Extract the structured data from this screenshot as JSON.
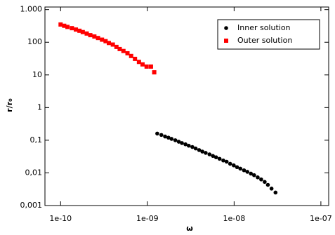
{
  "chart_data": {
    "type": "scatter",
    "log_x": true,
    "log_y": true,
    "xlabel": "ω",
    "ylabel": "r/r₀",
    "xlim": [
      6.6e-11,
      1.23e-07
    ],
    "ylim": [
      0.001,
      1200
    ],
    "xticks": [
      {
        "value": 1e-10,
        "label": "1e-10"
      },
      {
        "value": 1e-09,
        "label": "1e-09"
      },
      {
        "value": 1e-08,
        "label": "1e-08"
      },
      {
        "value": 1e-07,
        "label": "1e-07"
      }
    ],
    "yticks": [
      {
        "value": 0.001,
        "label": "0,001"
      },
      {
        "value": 0.01,
        "label": "0,01"
      },
      {
        "value": 0.1,
        "label": "0,1"
      },
      1,
      10,
      100,
      {
        "value": 1000,
        "label": "1.000"
      }
    ],
    "legend_position": "upper right",
    "series": [
      {
        "name": "Inner solution",
        "color": "#000000",
        "marker": "circle",
        "x": [
          1.3e-09,
          1.45e-09,
          1.6e-09,
          1.75e-09,
          1.9e-09,
          2.1e-09,
          2.3e-09,
          2.5e-09,
          2.75e-09,
          3e-09,
          3.3e-09,
          3.6e-09,
          3.95e-09,
          4.3e-09,
          4.7e-09,
          5.2e-09,
          5.7e-09,
          6.2e-09,
          6.8e-09,
          7.5e-09,
          8.2e-09,
          9e-09,
          9.9e-09,
          1.08e-08,
          1.18e-08,
          1.3e-08,
          1.42e-08,
          1.56e-08,
          1.7e-08,
          1.87e-08,
          2.05e-08,
          2.25e-08,
          2.45e-08,
          2.7e-08,
          3e-08
        ],
        "values": [
          0.16,
          0.145,
          0.13,
          0.12,
          0.11,
          0.1,
          0.09,
          0.082,
          0.075,
          0.068,
          0.062,
          0.056,
          0.05,
          0.045,
          0.041,
          0.037,
          0.033,
          0.03,
          0.027,
          0.024,
          0.022,
          0.019,
          0.017,
          0.015,
          0.0135,
          0.012,
          0.0108,
          0.0095,
          0.0085,
          0.0073,
          0.0063,
          0.0053,
          0.0043,
          0.0033,
          0.0025
        ]
      },
      {
        "name": "Outer solution",
        "color": "#ff0000",
        "marker": "square",
        "x": [
          1e-10,
          1.1e-10,
          1.2e-10,
          1.35e-10,
          1.5e-10,
          1.65e-10,
          1.8e-10,
          2e-10,
          2.2e-10,
          2.45e-10,
          2.7e-10,
          3e-10,
          3.3e-10,
          3.6e-10,
          4e-10,
          4.4e-10,
          4.8e-10,
          5.3e-10,
          5.9e-10,
          6.5e-10,
          7.2e-10,
          8e-10,
          8.8e-10,
          9.8e-10,
          1.1e-09,
          1.2e-09
        ],
        "values": [
          350,
          320,
          295,
          270,
          245,
          225,
          205,
          185,
          165,
          150,
          135,
          120,
          108,
          95,
          85,
          72,
          62,
          54,
          46,
          38,
          31,
          25,
          21,
          18,
          18,
          12
        ]
      }
    ]
  }
}
